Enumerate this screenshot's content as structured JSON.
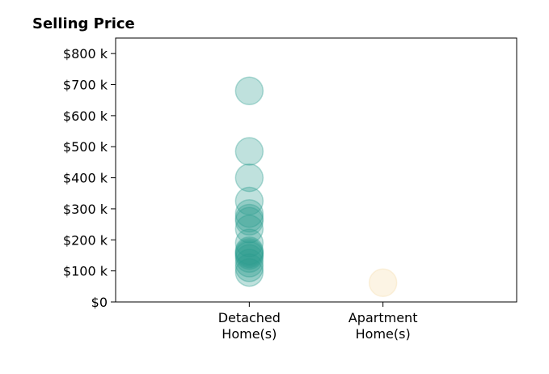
{
  "chart_data": {
    "type": "scatter",
    "title": "Selling Price",
    "xlabel": "",
    "ylabel": "",
    "grid": false,
    "categories": [
      "Detached\nHome(s)",
      "Apartment\nHome(s)"
    ],
    "ylim": [
      0,
      850000
    ],
    "yticks": [
      0,
      100000,
      200000,
      300000,
      400000,
      500000,
      600000,
      700000,
      800000
    ],
    "ytick_labels": [
      "$0",
      "$100 k",
      "$200 k",
      "$300 k",
      "$400 k",
      "$500 k",
      "$600 k",
      "$700 k",
      "$800 k"
    ],
    "series": [
      {
        "category": "Detached\nHome(s)",
        "color": "#2a9d8f",
        "values": [
          680000,
          485000,
          400000,
          325000,
          285000,
          270000,
          260000,
          235000,
          190000,
          165000,
          160000,
          155000,
          150000,
          140000,
          125000,
          110000,
          95000
        ]
      },
      {
        "category": "Apartment\nHome(s)",
        "color": "#f4d9a6",
        "values": [
          62000
        ]
      }
    ]
  }
}
